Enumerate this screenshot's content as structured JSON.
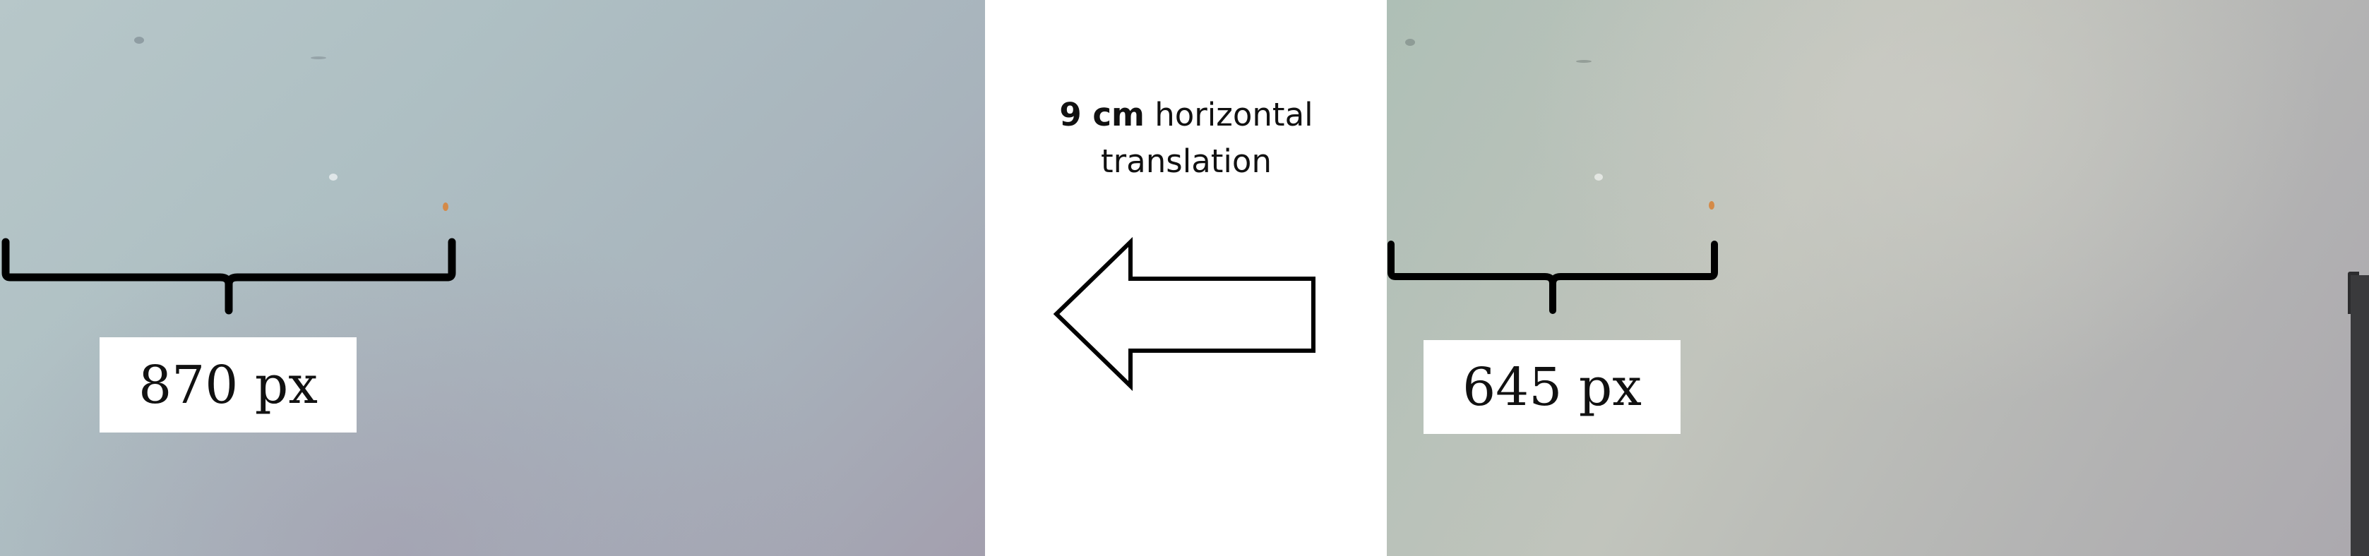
{
  "left_image": {
    "label": "870 px"
  },
  "right_image": {
    "label": "645 px"
  },
  "annotation": {
    "distance": "9 cm",
    "text_line1_rest": " horizontal",
    "text_line2": "translation"
  },
  "arrow": {
    "direction": "left"
  },
  "colors": {
    "bracket": "#000000",
    "label_background": "#ffffff",
    "text": "#111111"
  }
}
